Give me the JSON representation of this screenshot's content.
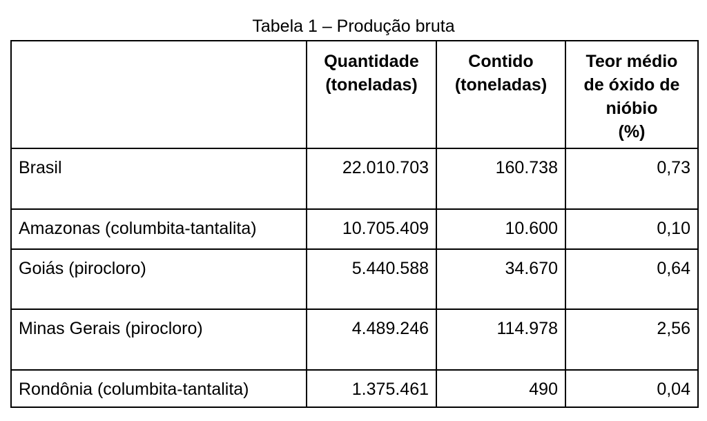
{
  "caption": "Tabela 1 – Produção bruta",
  "columns": [
    "",
    "Quantidade (toneladas)",
    "Contido (toneladas)",
    "Teor médio de óxido de nióbio (%)"
  ],
  "header_lines": {
    "col1": [
      "Quantidade",
      "(toneladas)"
    ],
    "col2": [
      "Contido",
      "(toneladas)"
    ],
    "col3": [
      "Teor médio",
      "de óxido de",
      "nióbio",
      "(%)"
    ]
  },
  "rows": [
    {
      "name": "Brasil",
      "quantidade": "22.010.703",
      "contido": "160.738",
      "teor": "0,73"
    },
    {
      "name": "Amazonas (columbita-tantalita)",
      "quantidade": "10.705.409",
      "contido": "10.600",
      "teor": "0,10"
    },
    {
      "name": "Goiás (pirocloro)",
      "quantidade": "5.440.588",
      "contido": "34.670",
      "teor": "0,64"
    },
    {
      "name": "Minas Gerais (pirocloro)",
      "quantidade": "4.489.246",
      "contido": "114.978",
      "teor": "2,56"
    },
    {
      "name": "Rondônia (columbita-tantalita)",
      "quantidade": "1.375.461",
      "contido": "490",
      "teor": "0,04"
    }
  ]
}
